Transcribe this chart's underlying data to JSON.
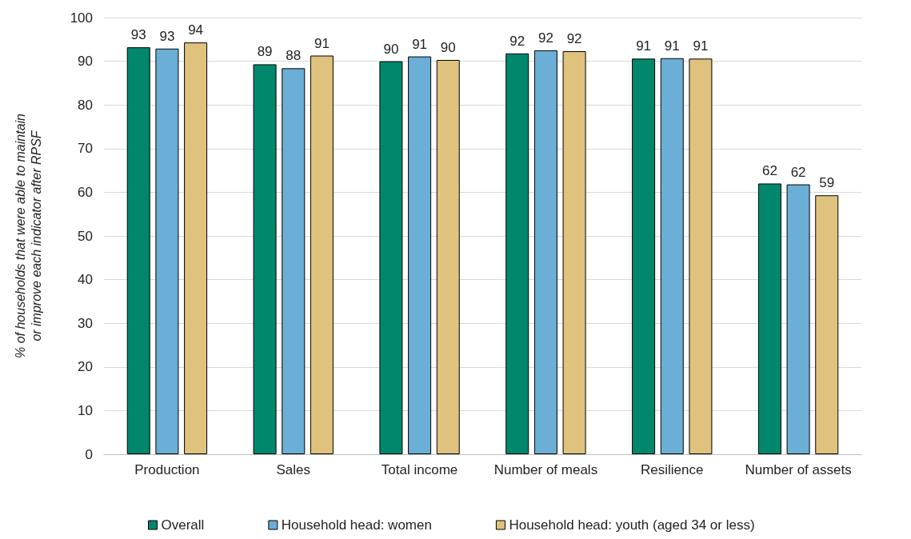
{
  "chart_data": {
    "type": "bar",
    "ylabel": "% of households that were able to maintain\nor improve each indicator after RPSF",
    "categories": [
      "Production",
      "Sales",
      "Total income",
      "Number of meals",
      "Resilience",
      "Number of assets"
    ],
    "series": [
      {
        "name": "Overall",
        "color": "#00876c",
        "values": [
          93.2,
          89.3,
          90.0,
          91.8,
          90.6,
          62.0
        ],
        "value_labels": [
          "93",
          "89",
          "90",
          "92",
          "91",
          "62"
        ]
      },
      {
        "name": "Household head: women",
        "color": "#6baed6",
        "values": [
          92.9,
          88.4,
          91.1,
          92.5,
          90.7,
          61.8
        ],
        "value_labels": [
          "93",
          "88",
          "91",
          "92",
          "91",
          "62"
        ]
      },
      {
        "name": "Household head: youth (aged 34 or less)",
        "color": "#dfc27d",
        "values": [
          94.3,
          91.3,
          90.3,
          92.3,
          90.6,
          59.3
        ],
        "value_labels": [
          "94",
          "91",
          "90",
          "92",
          "91",
          "59"
        ]
      }
    ],
    "ylim": [
      0,
      100
    ],
    "yticks": [
      0,
      10,
      20,
      30,
      40,
      50,
      60,
      70,
      80,
      90,
      100
    ],
    "grid": "y",
    "legend": "bottom"
  }
}
